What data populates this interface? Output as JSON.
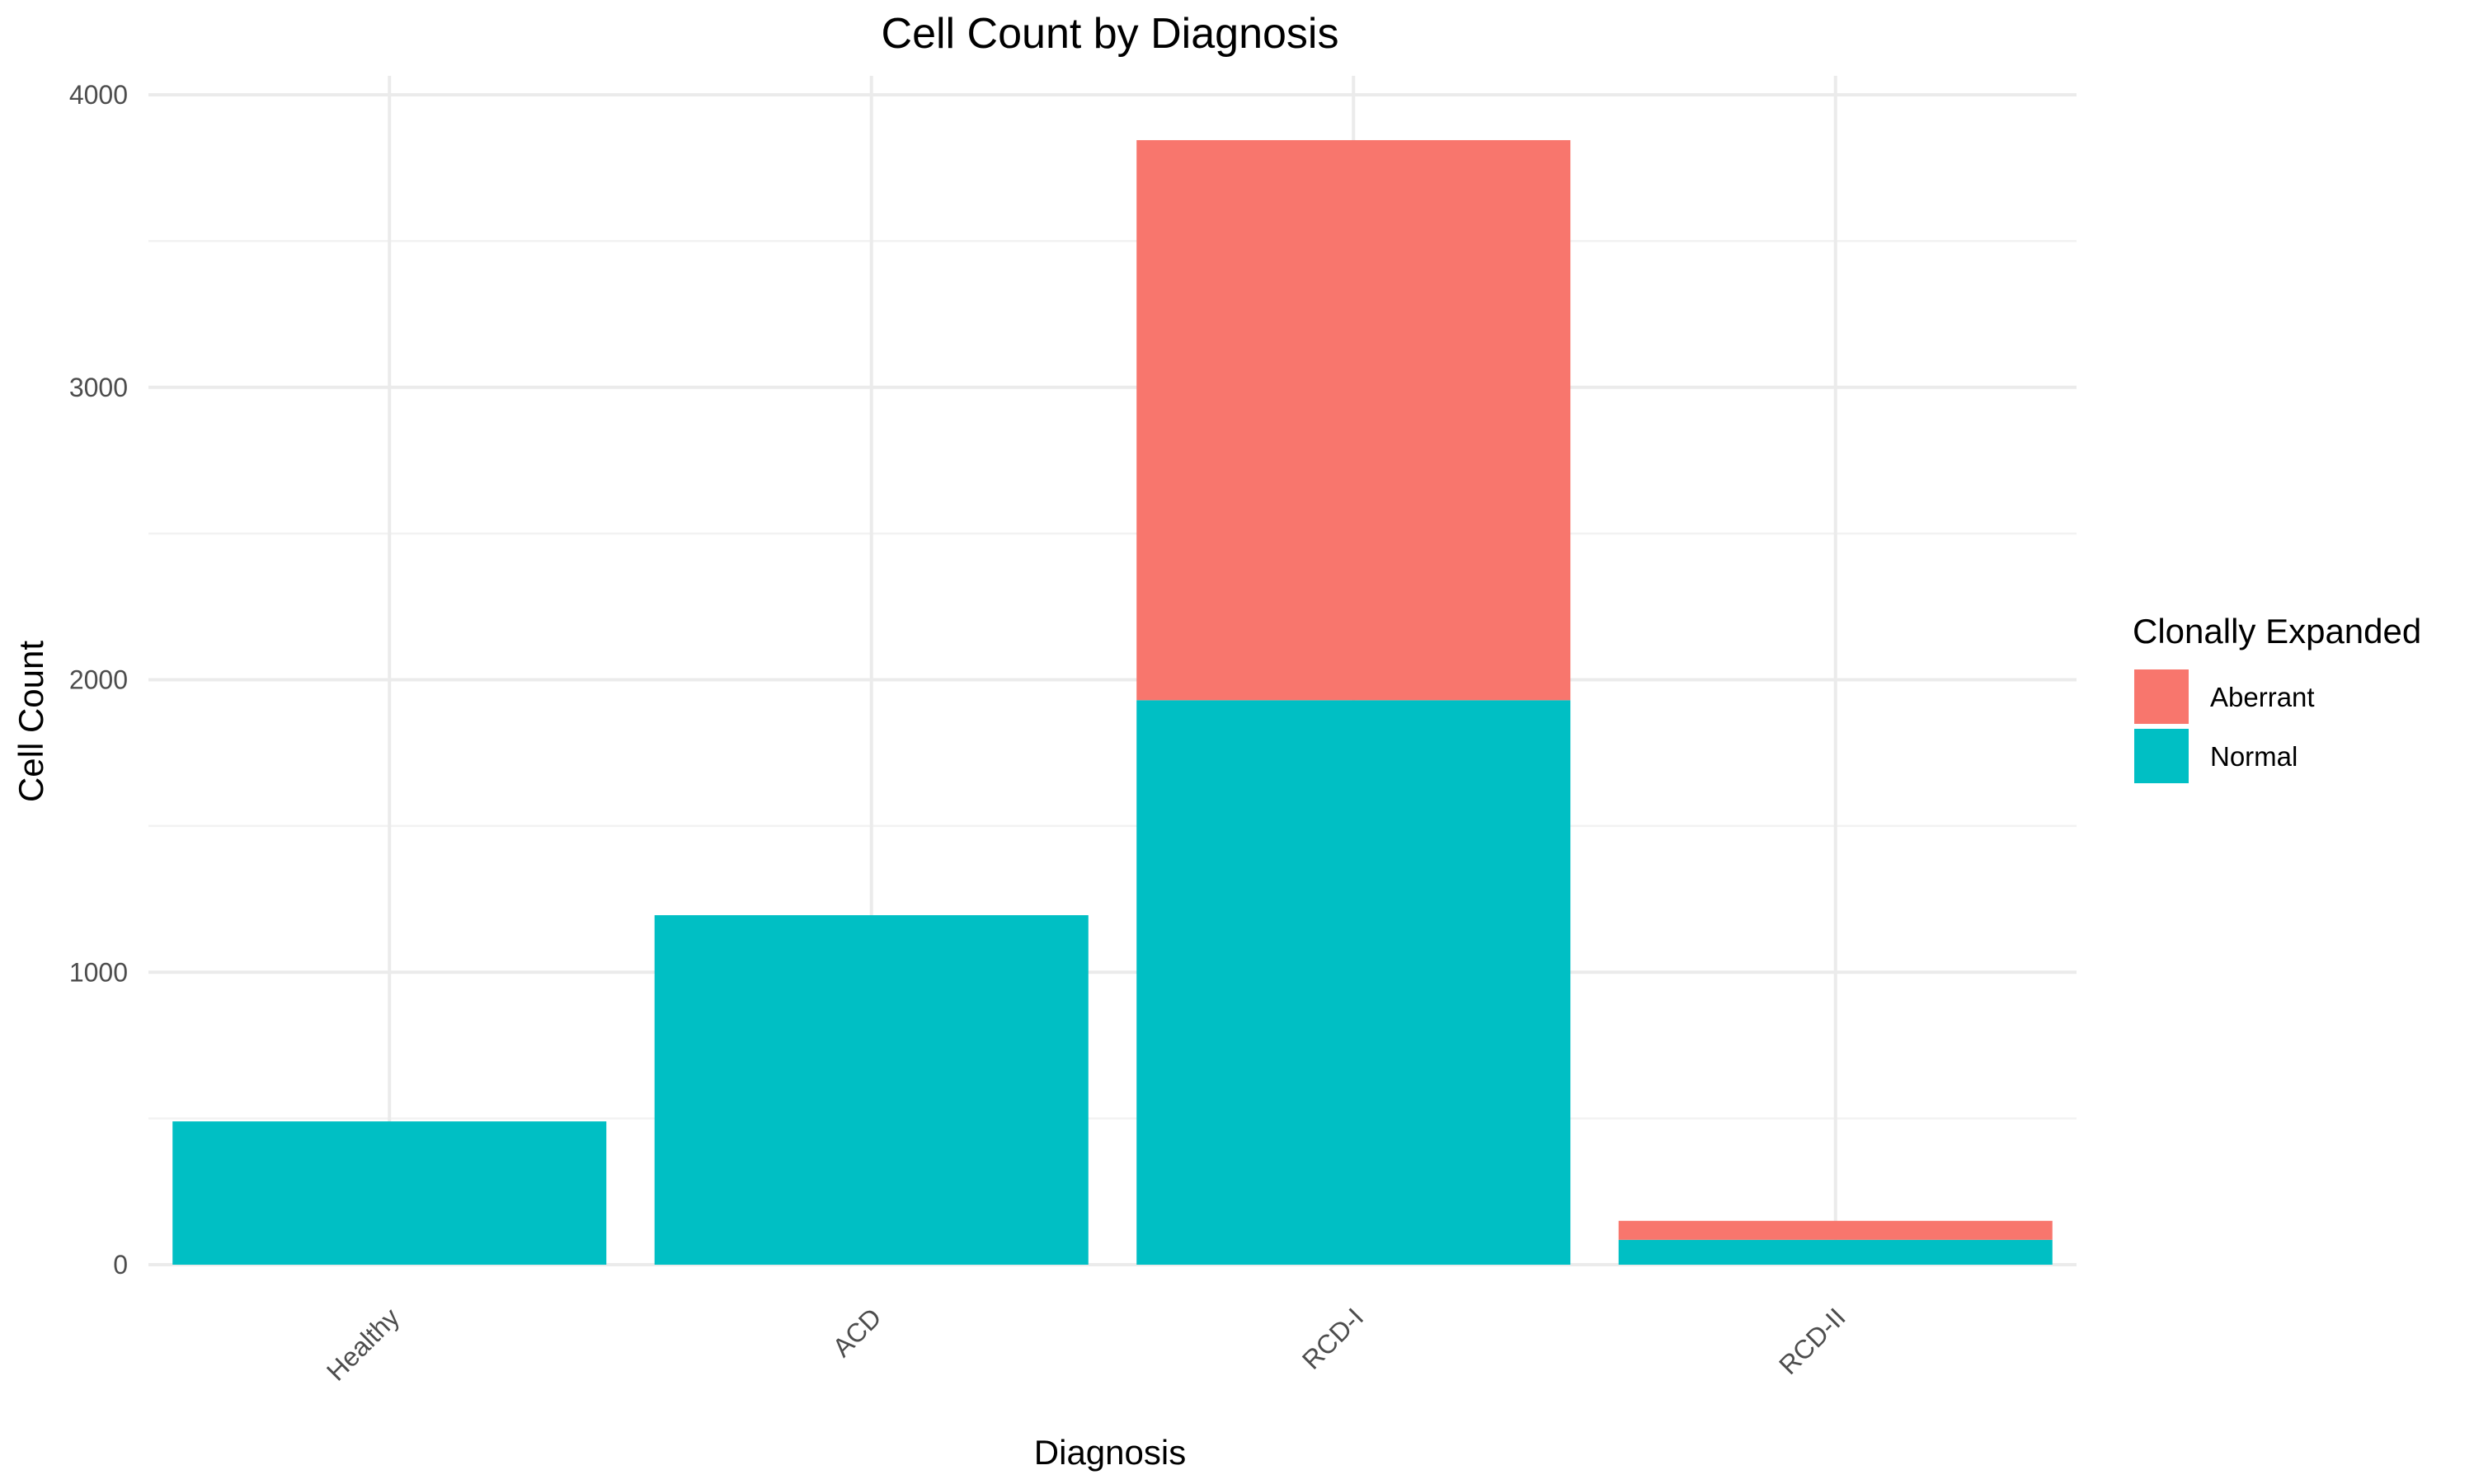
{
  "chart_data": {
    "type": "bar",
    "stacked": true,
    "title": "Cell Count by Diagnosis",
    "xlabel": "Diagnosis",
    "ylabel": "Cell Count",
    "categories": [
      "Healthy",
      "ACD",
      "RCD-I",
      "RCD-II"
    ],
    "series": [
      {
        "name": "Normal",
        "values": [
          490,
          1195,
          1930,
          85
        ],
        "color": "#00BFC4"
      },
      {
        "name": "Aberrant",
        "values": [
          0,
          0,
          1915,
          65
        ],
        "color": "#F8766D"
      }
    ],
    "ylim": [
      0,
      4000
    ],
    "yticks": [
      0,
      1000,
      2000,
      3000,
      4000
    ],
    "ytick_labels": [
      "0",
      "1000",
      "2000",
      "3000",
      "4000"
    ],
    "grid": true,
    "legend": {
      "title": "Clonally Expanded",
      "position": "right",
      "entries": [
        {
          "label": "Aberrant",
          "color": "#F8766D"
        },
        {
          "label": "Normal",
          "color": "#00BFC4"
        }
      ]
    }
  }
}
